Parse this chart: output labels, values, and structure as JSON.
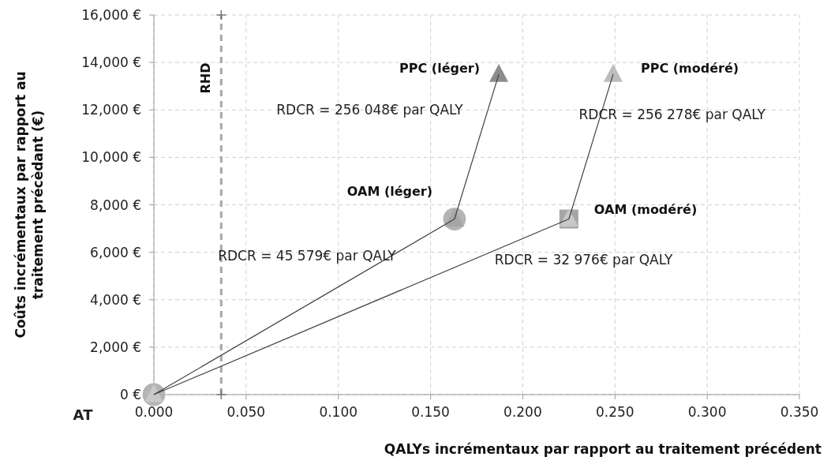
{
  "chart_data": {
    "type": "line",
    "xlabel": "QALYs incrémentaux par rapport au traitement précédent",
    "ylabel": "Coûts incrémentaux par rapport au traitement précèdant (€)",
    "xlim": [
      0,
      0.35
    ],
    "xticks": [
      {
        "value": 0,
        "label": "0.000"
      },
      {
        "value": 0.05,
        "label": "0.050"
      },
      {
        "value": 0.1,
        "label": "0.100"
      },
      {
        "value": 0.15,
        "label": "0.150"
      },
      {
        "value": 0.2,
        "label": "0.200"
      },
      {
        "value": 0.25,
        "label": "0.250"
      },
      {
        "value": 0.3,
        "label": "0.300"
      },
      {
        "value": 0.35,
        "label": "0.350"
      }
    ],
    "ylim": [
      0,
      16000
    ],
    "yticks": [
      {
        "value": 0,
        "label": "0 €"
      },
      {
        "value": 2000,
        "label": "2,000 €"
      },
      {
        "value": 4000,
        "label": "4,000 €"
      },
      {
        "value": 6000,
        "label": "6,000 €"
      },
      {
        "value": 8000,
        "label": "8,000 €"
      },
      {
        "value": 10000,
        "label": "10,000 €"
      },
      {
        "value": 12000,
        "label": "12,000 €"
      },
      {
        "value": 14000,
        "label": "14,000 €"
      },
      {
        "value": 16000,
        "label": "16,000 €"
      }
    ],
    "grid": true,
    "series": [
      {
        "type": "line",
        "color": "#404040",
        "marker": "none",
        "x": [
          0,
          0.163,
          0.187
        ],
        "values": [
          0,
          7400,
          13500
        ]
      },
      {
        "type": "line",
        "color": "#404040",
        "marker": "none",
        "x": [
          0,
          0.225,
          0.249
        ],
        "values": [
          0,
          7400,
          13500
        ]
      },
      {
        "type": "scatter",
        "marker": "circle",
        "color": "#b4b4b4",
        "x": [
          0,
          0.163
        ],
        "values": [
          0,
          7400
        ]
      },
      {
        "type": "scatter",
        "marker": "square",
        "color": "#a6a6a6",
        "x": [
          0.225
        ],
        "values": [
          7400
        ]
      },
      {
        "type": "scatter",
        "marker": "triangle",
        "colors": [
          "#c8c8c8",
          "#a6a6a6",
          "#8c8c8c",
          "#c8c8c8",
          "#bcbcbc"
        ],
        "x": [
          0,
          0.163,
          0.187,
          0.225,
          0.249
        ],
        "values": [
          0,
          7400,
          13500,
          7400,
          13500
        ]
      }
    ],
    "ref_lines": [
      {
        "axis": "x",
        "value": 0.0365,
        "label": "RHD",
        "color": "#a6a6a6",
        "line_style": "dashed"
      }
    ],
    "annotations": [
      "AT",
      {
        "text": "OAM (léger)",
        "x": 0.163,
        "y": 7400
      },
      {
        "text": "PPC (léger)",
        "x": 0.187,
        "y": 13500
      },
      {
        "text": "OAM (modéré)",
        "x": 0.225,
        "y": 7400
      },
      {
        "text": "PPC (modéré)",
        "x": 0.249,
        "y": 13500
      },
      "RDCR = 45 579€ par QALY",
      "RDCR = 256 048€ par QALY",
      "RDCR = 32 976€ par QALY",
      "RDCR = 256 278€ par QALY"
    ]
  }
}
